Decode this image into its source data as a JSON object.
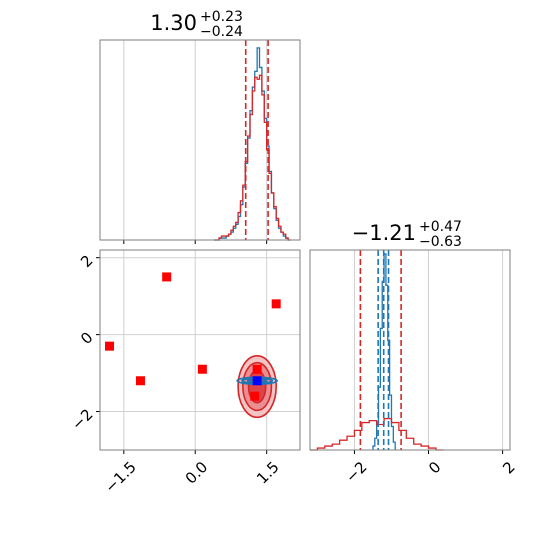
{
  "chart_data": [
    {
      "panel": "top-left",
      "type": "histogram",
      "title": {
        "main": "1.30",
        "sup": "+0.23",
        "sub": "−0.24"
      },
      "xlim": [
        -2.0,
        2.2
      ],
      "x_ticks": [
        -1.5,
        0.0,
        1.5
      ],
      "x_tick_labels_shown": false,
      "quantile_lines": [
        1.06,
        1.53
      ],
      "series": [
        {
          "color": "#1f77b4",
          "bins": [
            0.4,
            0.45,
            0.5,
            0.55,
            0.6,
            0.65,
            0.7,
            0.75,
            0.8,
            0.85,
            0.9,
            0.95,
            1.0,
            1.05,
            1.1,
            1.15,
            1.2,
            1.25,
            1.3,
            1.35,
            1.4,
            1.45,
            1.5,
            1.55,
            1.6,
            1.65,
            1.7,
            1.75,
            1.8,
            1.85,
            1.9,
            1.95,
            2.0
          ],
          "values": [
            0.0,
            0.0,
            0.01,
            0.01,
            0.01,
            0.02,
            0.03,
            0.04,
            0.06,
            0.08,
            0.12,
            0.18,
            0.27,
            0.39,
            0.52,
            0.66,
            0.78,
            0.86,
            0.98,
            0.88,
            0.76,
            0.62,
            0.48,
            0.35,
            0.24,
            0.16,
            0.1,
            0.06,
            0.04,
            0.02,
            0.01,
            0.0
          ]
        },
        {
          "color": "#d62728",
          "bins": [
            0.4,
            0.45,
            0.5,
            0.55,
            0.6,
            0.65,
            0.7,
            0.75,
            0.8,
            0.85,
            0.9,
            0.95,
            1.0,
            1.05,
            1.1,
            1.15,
            1.2,
            1.25,
            1.3,
            1.35,
            1.4,
            1.45,
            1.5,
            1.55,
            1.6,
            1.65,
            1.7,
            1.75,
            1.8,
            1.85,
            1.9,
            1.95,
            2.0
          ],
          "values": [
            0.0,
            0.0,
            0.01,
            0.02,
            0.02,
            0.02,
            0.03,
            0.05,
            0.07,
            0.09,
            0.14,
            0.2,
            0.28,
            0.4,
            0.53,
            0.64,
            0.76,
            0.83,
            0.82,
            0.84,
            0.74,
            0.6,
            0.46,
            0.34,
            0.24,
            0.17,
            0.11,
            0.07,
            0.04,
            0.03,
            0.01,
            0.0
          ]
        }
      ]
    },
    {
      "panel": "bottom-left",
      "type": "scatter",
      "xlim": [
        -2.0,
        2.2
      ],
      "ylim": [
        -3.0,
        2.2
      ],
      "x_ticks": [
        -1.5,
        0.0,
        1.5
      ],
      "x_tick_labels": [
        "−1.5",
        "0.0",
        "1.5"
      ],
      "y_ticks": [
        -2,
        0,
        2
      ],
      "y_tick_labels": [
        "−2",
        "0",
        "2"
      ],
      "red_points": [
        [
          -1.8,
          -0.3
        ],
        [
          -1.15,
          -1.2
        ],
        [
          -0.6,
          1.5
        ],
        [
          0.15,
          -0.9
        ],
        [
          1.3,
          -0.9
        ],
        [
          1.25,
          -1.6
        ],
        [
          1.7,
          0.8
        ]
      ],
      "blue_point": [
        1.3,
        -1.2
      ],
      "red_contours_center": [
        1.3,
        -1.35
      ],
      "blue_contour_center": [
        1.3,
        -1.2
      ]
    },
    {
      "panel": "bottom-right",
      "type": "histogram",
      "title": {
        "main": "−1.21",
        "sup": "+0.47",
        "sub": "−0.63"
      },
      "xlim": [
        -3.2,
        2.2
      ],
      "x_ticks": [
        -2,
        0,
        2
      ],
      "x_tick_labels": [
        "−2",
        "0",
        "2"
      ],
      "quantile_lines_red": [
        -1.84,
        -0.74
      ],
      "quantile_lines_blue": [
        -1.36,
        -1.21,
        -1.08
      ],
      "series": [
        {
          "color": "#1f77b4",
          "bins": [
            -1.5,
            -1.45,
            -1.4,
            -1.35,
            -1.3,
            -1.25,
            -1.2,
            -1.15,
            -1.1,
            -1.05,
            -1.0,
            -0.95,
            -0.9
          ],
          "values": [
            0.02,
            0.06,
            0.14,
            0.32,
            0.62,
            0.86,
            1.0,
            0.84,
            0.56,
            0.28,
            0.12,
            0.04
          ]
        },
        {
          "color": "#d62728",
          "bins": [
            -3.2,
            -3.0,
            -2.8,
            -2.6,
            -2.4,
            -2.2,
            -2.0,
            -1.8,
            -1.6,
            -1.4,
            -1.2,
            -1.0,
            -0.8,
            -0.6,
            -0.4,
            -0.2,
            0.0,
            0.2,
            0.4
          ],
          "values": [
            0.0,
            0.01,
            0.02,
            0.03,
            0.05,
            0.07,
            0.1,
            0.14,
            0.15,
            0.13,
            0.16,
            0.14,
            0.1,
            0.06,
            0.03,
            0.02,
            0.01,
            0.0
          ]
        }
      ]
    }
  ]
}
